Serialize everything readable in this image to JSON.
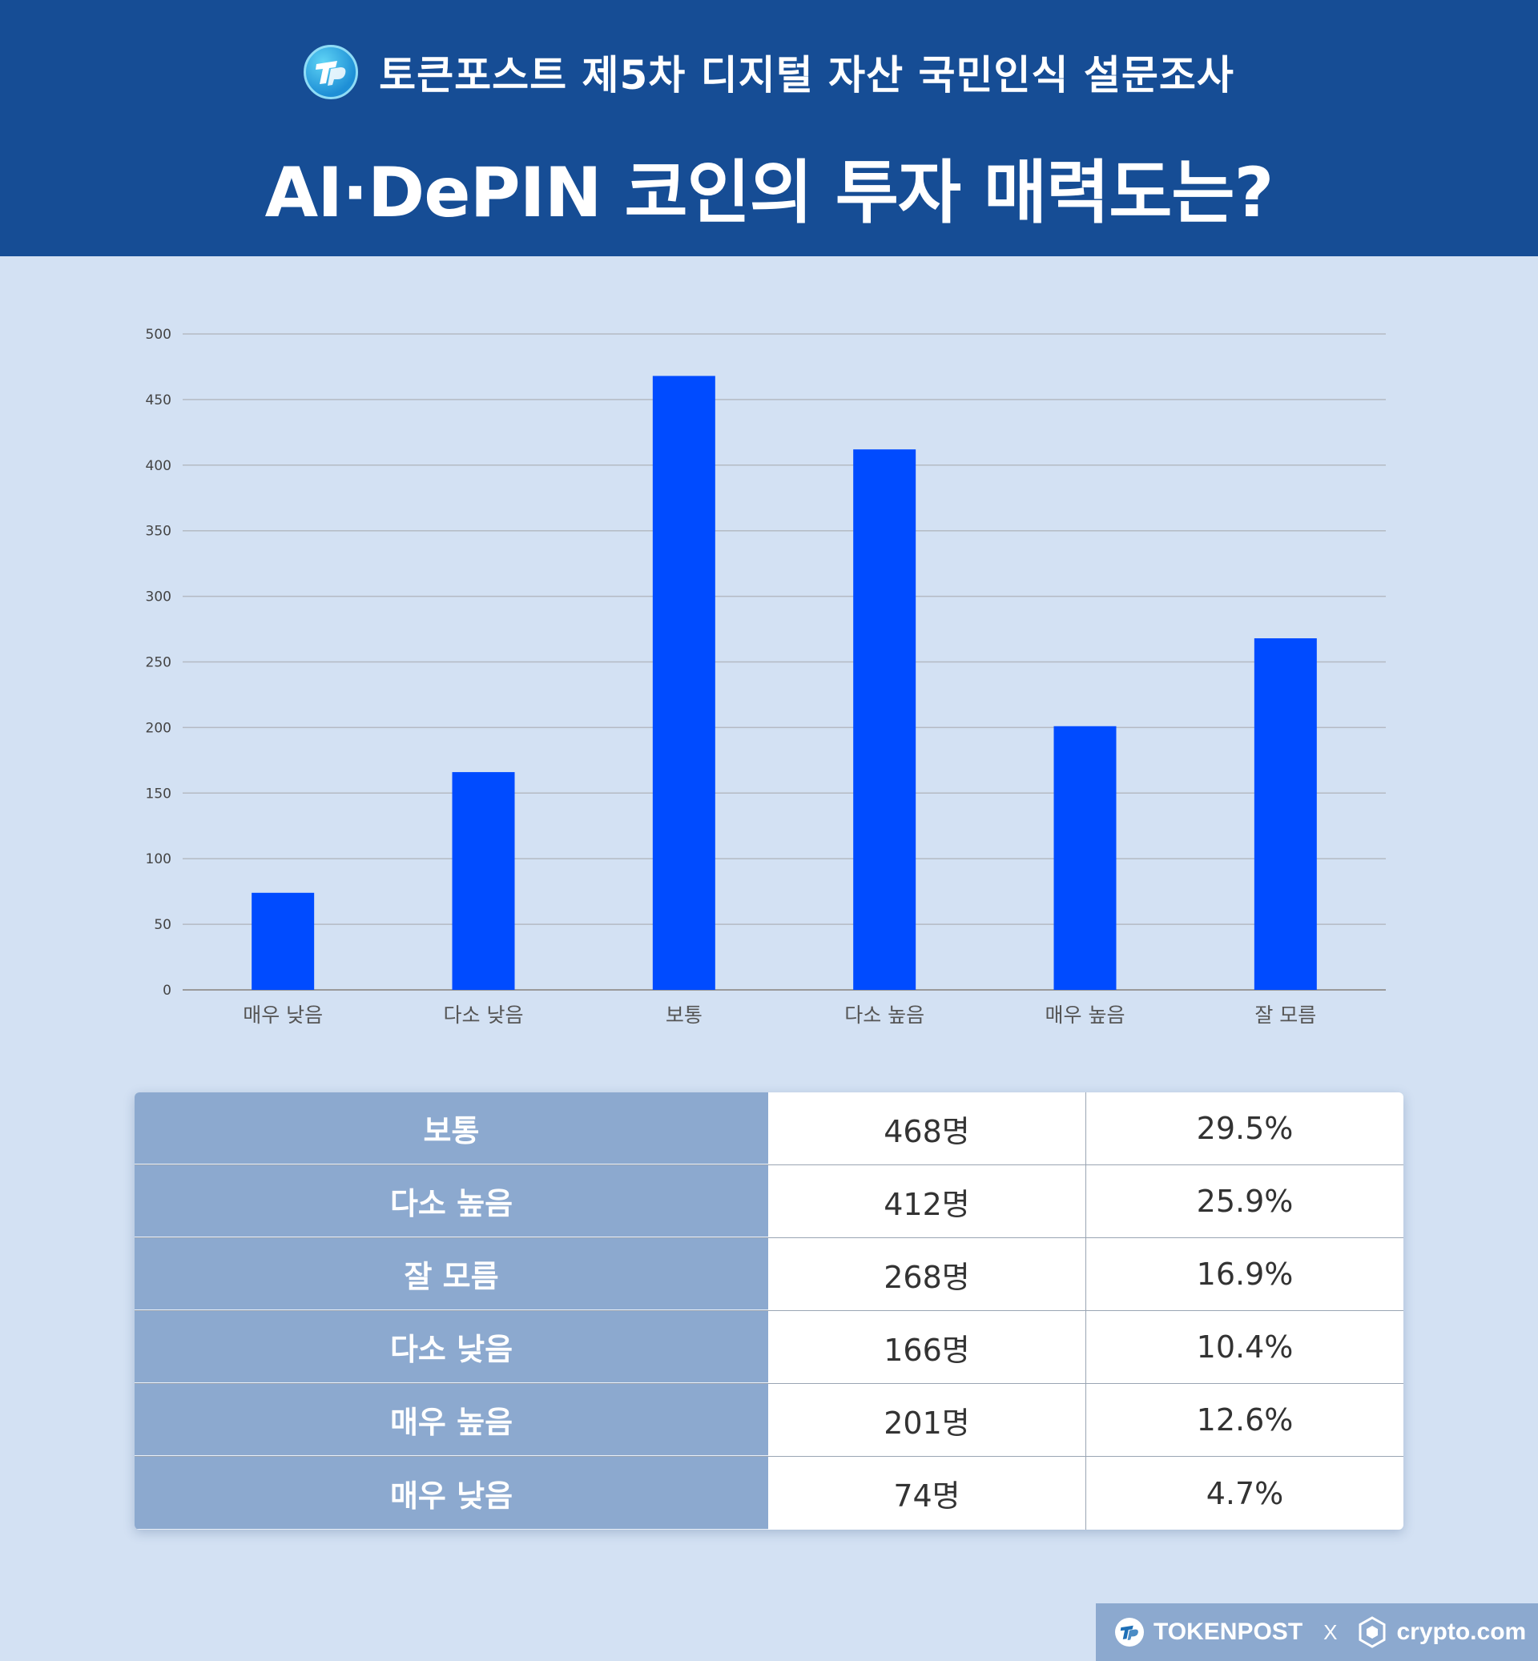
{
  "header": {
    "subtitle": "토큰포스트 제5차 디지털 자산 국민인식 설문조사",
    "title": "AI·DePIN 코인의 투자 매력도는?"
  },
  "chart_data": {
    "type": "bar",
    "categories": [
      "매우 낮음",
      "다소 낮음",
      "보통",
      "다소 높음",
      "매우 높음",
      "잘 모름"
    ],
    "values": [
      74,
      166,
      468,
      412,
      201,
      268
    ],
    "ylim": [
      0,
      500
    ],
    "yticks": [
      0,
      50,
      100,
      150,
      200,
      250,
      300,
      350,
      400,
      450,
      500
    ],
    "grid": true,
    "bar_color": "#004bff"
  },
  "table": {
    "rows": [
      {
        "label": "보통",
        "count": "468명",
        "pct": "29.5%"
      },
      {
        "label": "다소 높음",
        "count": "412명",
        "pct": "25.9%"
      },
      {
        "label": "잘 모름",
        "count": "268명",
        "pct": "16.9%"
      },
      {
        "label": "다소 낮음",
        "count": "166명",
        "pct": "10.4%"
      },
      {
        "label": "매우 높음",
        "count": "201명",
        "pct": "12.6%"
      },
      {
        "label": "매우 낮음",
        "count": "74명",
        "pct": "4.7%"
      }
    ]
  },
  "footer": {
    "brand1": "TOKENPOST",
    "separator": "X",
    "brand2": "crypto.com"
  },
  "colors": {
    "header_bg": "#164d95",
    "page_bg": "#d3e1f3",
    "label_col_bg": "#8ca9cf"
  }
}
